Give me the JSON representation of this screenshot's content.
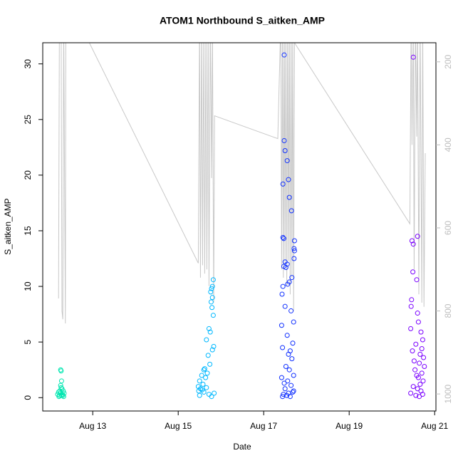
{
  "chart_data": {
    "type": "scatter",
    "title": "ATOM1 Northbound S_aitken_AMP",
    "x_label": "Date",
    "y_label": "S_aitken_AMP",
    "xlim": [
      11.83,
      21.03
    ],
    "xticks": [
      {
        "value": 13,
        "label": "Aug 13"
      },
      {
        "value": 15,
        "label": "Aug 15"
      },
      {
        "value": 17,
        "label": "Aug 17"
      },
      {
        "value": 19,
        "label": "Aug 19"
      },
      {
        "value": 21,
        "label": "Aug 21"
      }
    ],
    "ylim": [
      -1.2,
      31.9
    ],
    "yticks": [
      0,
      5,
      10,
      15,
      20,
      25,
      30
    ],
    "y2lim": [
      1041,
      154
    ],
    "y2ticks": [
      200,
      400,
      600,
      800,
      1000
    ],
    "series": [
      {
        "type": "scatter",
        "color": "#00e6b0",
        "x": [
          12.18,
          12.2,
          12.21,
          12.22,
          12.23,
          12.24,
          12.25,
          12.26,
          12.27,
          12.28,
          12.29,
          12.3,
          12.31,
          12.32,
          12.33,
          12.25,
          12.26,
          12.27
        ],
        "values": [
          0.3,
          0.5,
          0.1,
          0.2,
          0.6,
          0.4,
          2.5,
          2.4,
          1.5,
          0.8,
          0.3,
          0.2,
          0.6,
          0.1,
          0.4,
          1.1,
          0.9,
          0.2
        ]
      },
      {
        "type": "scatter",
        "color": "#00b8ff",
        "x": [
          15.82,
          15.8,
          15.78,
          15.76,
          15.8,
          15.77,
          15.79,
          15.82,
          15.72,
          15.75,
          15.66,
          15.83,
          15.8,
          15.7,
          15.74,
          15.62,
          15.6,
          15.68,
          15.55,
          15.64,
          15.5,
          15.58,
          15.47,
          15.52,
          15.48,
          15.6,
          15.72,
          15.5,
          15.78,
          15.66,
          15.56,
          15.84
        ],
        "values": [
          10.6,
          10,
          9.8,
          9.5,
          9,
          8.6,
          8.1,
          7.4,
          6.2,
          5.9,
          5.2,
          4.6,
          4.3,
          3.8,
          3,
          2.6,
          2.5,
          2.2,
          2,
          1.8,
          1.5,
          1.2,
          1,
          0.8,
          0.6,
          0.5,
          0.3,
          0.2,
          0.1,
          0.9,
          0.7,
          0.4
        ]
      },
      {
        "type": "scatter",
        "color": "#1030ff",
        "x": [
          17.48,
          17.48,
          17.5,
          17.55,
          17.58,
          17.45,
          17.6,
          17.65,
          17.45,
          17.47,
          17.72,
          17.71,
          17.72,
          17.71,
          17.5,
          17.55,
          17.47,
          17.52,
          17.66,
          17.6,
          17.56,
          17.45,
          17.43,
          17.5,
          17.64,
          17.7,
          17.42,
          17.55,
          17.68,
          17.44,
          17.62,
          17.58,
          17.66,
          17.52,
          17.6,
          17.7,
          17.42,
          17.56,
          17.64,
          17.5,
          17.68,
          17.46,
          17.54,
          17.44,
          17.62,
          17.58,
          17.7,
          17.48
        ],
        "values": [
          30.8,
          23.1,
          22.2,
          21.3,
          19.6,
          19.2,
          18,
          16.8,
          14.4,
          14.3,
          14.1,
          13.4,
          13.2,
          12.5,
          12.2,
          12,
          11.8,
          11.7,
          10.8,
          10.4,
          10.2,
          10,
          9.3,
          8.2,
          7.8,
          6.8,
          6.5,
          5.6,
          4.9,
          4.5,
          4.2,
          3.9,
          3.5,
          2.8,
          2.5,
          2,
          1.8,
          1.5,
          1.1,
          0.8,
          0.5,
          0.3,
          0.2,
          0.1,
          0.1,
          0.4,
          0.6,
          1.3
        ]
      },
      {
        "type": "scatter",
        "color": "#7a00ff",
        "x": [
          20.5,
          20.6,
          20.47,
          20.5,
          20.49,
          20.58,
          20.46,
          20.45,
          20.6,
          20.62,
          20.44,
          20.68,
          20.72,
          20.56,
          20.7,
          20.48,
          20.66,
          20.74,
          20.52,
          20.64,
          20.76,
          20.54,
          20.7,
          20.58,
          20.62,
          20.73,
          20.66,
          20.5,
          20.6,
          20.68,
          20.44,
          20.72,
          20.56,
          20.64
        ],
        "values": [
          30.6,
          14.5,
          14.1,
          13.8,
          11.3,
          10.6,
          8.8,
          8.2,
          7.6,
          6.8,
          6.2,
          5.9,
          5.2,
          4.8,
          4.4,
          4.2,
          3.9,
          3.6,
          3.3,
          3.1,
          2.8,
          2.5,
          2.2,
          2,
          1.8,
          1.5,
          1.2,
          1,
          0.8,
          0.6,
          0.4,
          0.3,
          0.2,
          0.1
        ]
      },
      {
        "type": "line",
        "axis": "y2",
        "color": "#c8c8c8",
        "x": [
          12.2,
          12.22,
          12.26,
          12.28,
          12.3,
          12.32,
          12.36,
          12.37,
          12.92,
          15.47,
          15.5,
          15.52,
          15.55,
          15.57,
          15.6,
          15.62,
          15.65,
          15.67,
          15.7,
          15.72,
          15.75,
          15.78,
          15.8,
          15.83,
          15.85,
          17.33,
          17.4,
          17.42,
          17.44,
          17.46,
          17.48,
          17.5,
          17.52,
          17.54,
          17.56,
          17.58,
          17.6,
          17.62,
          17.64,
          17.66,
          17.68,
          17.7,
          17.72,
          20.42,
          20.45,
          20.47,
          20.5,
          20.52,
          20.55,
          20.58,
          20.6,
          20.63,
          20.66,
          20.7,
          20.72,
          20.75,
          20.78
        ],
        "values": [
          770,
          100,
          100,
          800,
          820,
          100,
          830,
          100,
          154,
          685,
          100,
          720,
          100,
          690,
          100,
          710,
          100,
          700,
          100,
          740,
          100,
          480,
          100,
          780,
          330,
          385,
          100,
          700,
          100,
          720,
          100,
          690,
          100,
          740,
          100,
          680,
          100,
          760,
          100,
          720,
          100,
          800,
          154,
          590,
          100,
          400,
          100,
          700,
          100,
          380,
          100,
          760,
          100,
          780,
          100,
          790,
          420
        ]
      }
    ]
  }
}
